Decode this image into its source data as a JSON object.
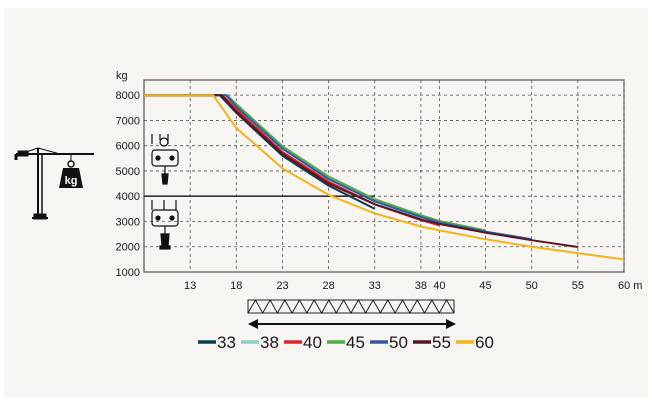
{
  "chart_data": {
    "type": "line",
    "y_unit": "kg",
    "x_unit": "m",
    "x_ticks": [
      13,
      18,
      23,
      28,
      33,
      38,
      40,
      45,
      50,
      55,
      60
    ],
    "x_tick_labels": [
      "13",
      "18",
      "23",
      "28",
      "33",
      "38",
      "40",
      "45",
      "50",
      "55",
      "60 m"
    ],
    "y_ticks": [
      1000,
      2000,
      3000,
      4000,
      5000,
      6000,
      7000,
      8000
    ],
    "y_tick_labels": [
      "1000",
      "2000",
      "3000",
      "4000",
      "5000",
      "6000",
      "7000",
      "8000"
    ],
    "xlim": [
      8,
      60
    ],
    "ylim": [
      1000,
      8600
    ],
    "grid": true,
    "reference_line": 4000,
    "legend_position": "bottom",
    "series": [
      {
        "name": "33",
        "color": "#0b3d4f",
        "points": [
          [
            8,
            8000
          ],
          [
            16.2,
            8000
          ],
          [
            18,
            7300
          ],
          [
            23,
            5600
          ],
          [
            28,
            4420
          ],
          [
            33,
            3500
          ]
        ]
      },
      {
        "name": "38",
        "color": "#8fcfc3",
        "points": [
          [
            8,
            8000
          ],
          [
            16.8,
            8000
          ],
          [
            18,
            7600
          ],
          [
            23,
            5900
          ],
          [
            28,
            4700
          ],
          [
            33,
            3800
          ],
          [
            38,
            3100
          ]
        ]
      },
      {
        "name": "40",
        "color": "#d9252a",
        "points": [
          [
            8,
            8000
          ],
          [
            16.5,
            8000
          ],
          [
            18,
            7450
          ],
          [
            23,
            5750
          ],
          [
            28,
            4580
          ],
          [
            33,
            3680
          ],
          [
            38,
            3050
          ],
          [
            40,
            2850
          ]
        ]
      },
      {
        "name": "45",
        "color": "#4fad4a",
        "points": [
          [
            8,
            8000
          ],
          [
            17,
            8000
          ],
          [
            18,
            7650
          ],
          [
            23,
            5980
          ],
          [
            28,
            4780
          ],
          [
            33,
            3880
          ],
          [
            38,
            3250
          ],
          [
            40,
            3020
          ],
          [
            45,
            2650
          ]
        ]
      },
      {
        "name": "50",
        "color": "#3a55a4",
        "points": [
          [
            8,
            8000
          ],
          [
            16.9,
            8000
          ],
          [
            18,
            7550
          ],
          [
            23,
            5880
          ],
          [
            28,
            4680
          ],
          [
            33,
            3800
          ],
          [
            38,
            3180
          ],
          [
            40,
            2960
          ],
          [
            45,
            2600
          ],
          [
            50,
            2300
          ]
        ]
      },
      {
        "name": "55",
        "color": "#5a1622",
        "points": [
          [
            8,
            8000
          ],
          [
            16.4,
            8000
          ],
          [
            18,
            7350
          ],
          [
            23,
            5680
          ],
          [
            28,
            4500
          ],
          [
            33,
            3680
          ],
          [
            38,
            3080
          ],
          [
            40,
            2900
          ],
          [
            45,
            2560
          ],
          [
            50,
            2260
          ],
          [
            55,
            1990
          ]
        ]
      },
      {
        "name": "60",
        "color": "#f2b418",
        "points": [
          [
            8,
            8000
          ],
          [
            15.5,
            8000
          ],
          [
            18,
            6700
          ],
          [
            23,
            5100
          ],
          [
            28,
            4050
          ],
          [
            33,
            3320
          ],
          [
            38,
            2800
          ],
          [
            40,
            2650
          ],
          [
            45,
            2300
          ],
          [
            50,
            2000
          ],
          [
            55,
            1750
          ],
          [
            60,
            1500
          ]
        ]
      }
    ]
  }
}
